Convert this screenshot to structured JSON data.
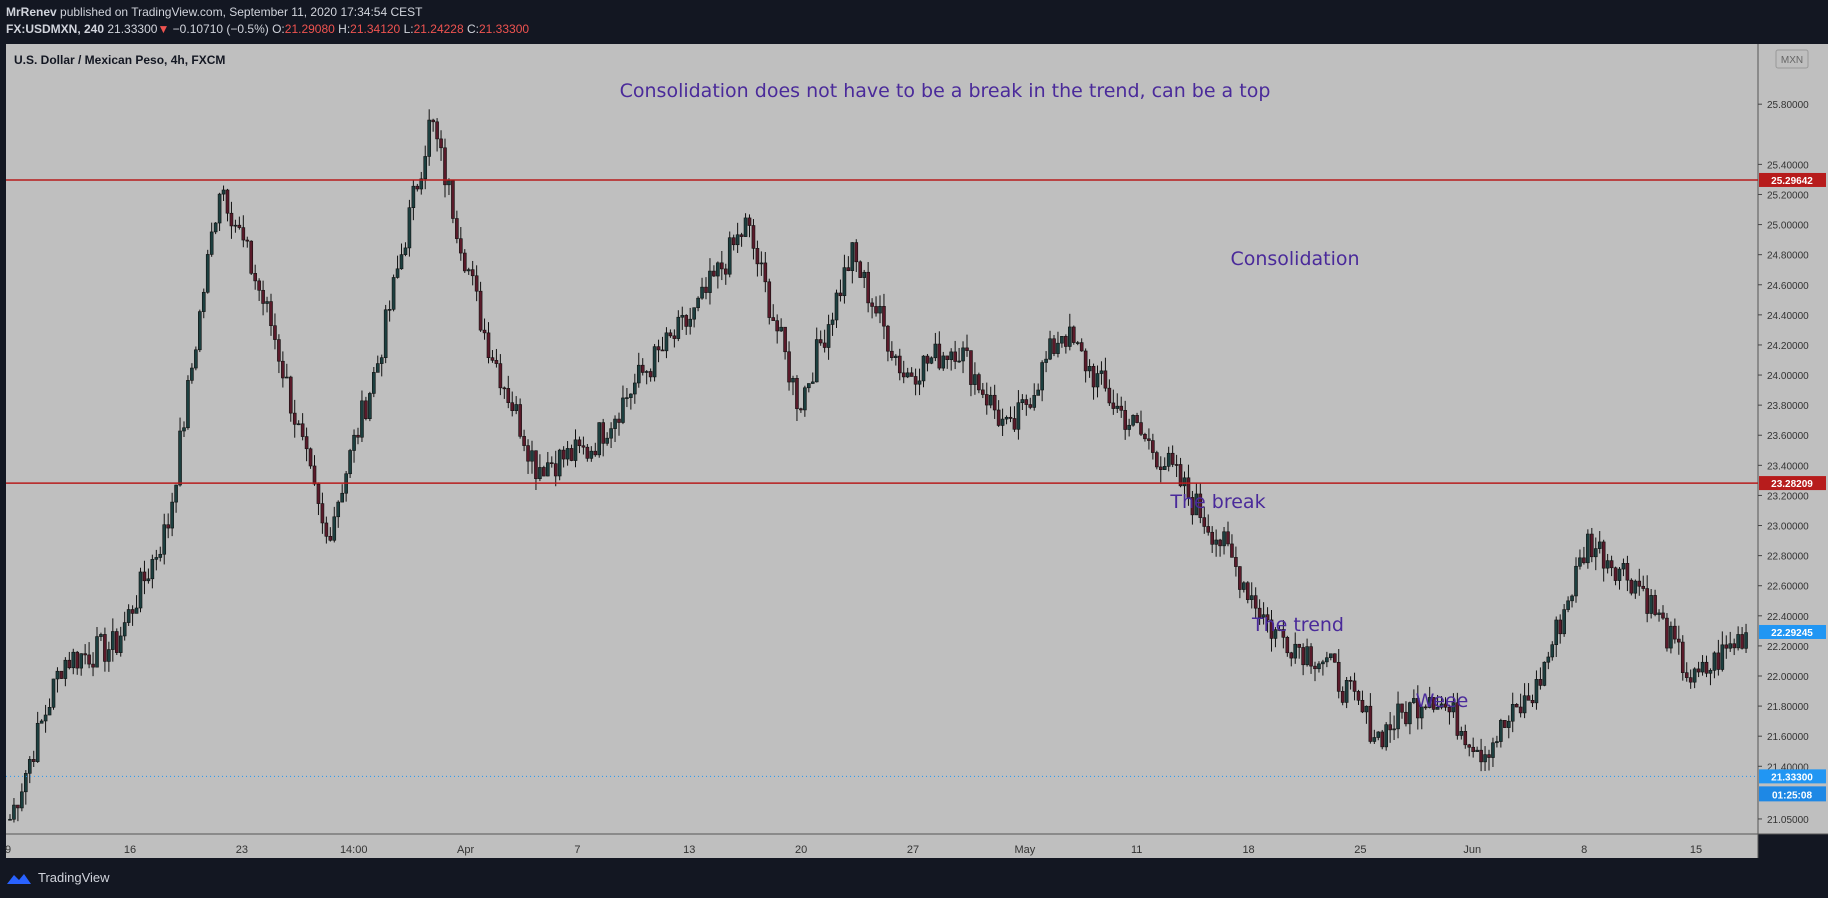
{
  "header": {
    "author": "MrRenev",
    "published_text": "published on TradingView.com, September 11, 2020 17:34:54 CEST",
    "symbol": "FX:USDMXN, 240",
    "last": "21.33300",
    "change_arrow": "▼",
    "change": "−0.10710 (−0.5%)",
    "open_label": "O:",
    "open": "21.29080",
    "high_label": "H:",
    "high": "21.34120",
    "low_label": "L:",
    "low": "21.24228",
    "close_label": "C:",
    "close": "21.33300"
  },
  "footer": {
    "brand": "TradingView"
  },
  "colors": {
    "plot_bg": "#bfbfbf",
    "frame": "#131722",
    "up": "#1c3f3f",
    "down": "#5a1a2a",
    "hline": "#b71c1c",
    "annotation": "#4a2a9a",
    "blue_tag": "#2196f3",
    "red_tag": "#b71c1c"
  },
  "chart_data": {
    "type": "candlestick",
    "title": "U.S. Dollar / Mexican Peso, 4h, FXCM",
    "currency": "MXN",
    "ylim": [
      20.95,
      26.2
    ],
    "y_ticks": [
      "21.05000",
      "21.40000",
      "21.60000",
      "21.80000",
      "22.00000",
      "22.20000",
      "22.40000",
      "22.60000",
      "22.80000",
      "23.00000",
      "23.20000",
      "23.40000",
      "23.60000",
      "23.80000",
      "24.00000",
      "24.20000",
      "24.40000",
      "24.60000",
      "24.80000",
      "25.00000",
      "25.20000",
      "25.40000",
      "25.80000"
    ],
    "x_ticks": [
      "9",
      "16",
      "23",
      "14:00",
      "Apr",
      "7",
      "13",
      "20",
      "27",
      "May",
      "11",
      "18",
      "25",
      "Jun",
      "8",
      "15"
    ],
    "horizontal_lines": [
      {
        "value": 25.29642,
        "label": "25.29642"
      },
      {
        "value": 23.28209,
        "label": "23.28209"
      }
    ],
    "price_tags": [
      {
        "value": 22.29245,
        "label": "22.29245"
      },
      {
        "value": 21.333,
        "label": "21.33300"
      }
    ],
    "countdown": "01:25:08",
    "annotations": [
      "Consolidation does not have to be a break in the trend, can be a top",
      "Consolidation",
      "The break",
      "The trend",
      "Weee"
    ],
    "price_path": [
      {
        "x": "9",
        "y": 21.05
      },
      {
        "x": "14",
        "y": 22.1
      },
      {
        "x": "16",
        "y": 22.2
      },
      {
        "x": "19",
        "y": 23.0
      },
      {
        "x": "23",
        "y": 25.3
      },
      {
        "x": "26",
        "y": 24.3
      },
      {
        "x": "14:00",
        "y": 22.9
      },
      {
        "x": "Apr",
        "y": 24.1
      },
      {
        "x": "Apr 6",
        "y": 25.7
      },
      {
        "x": "9",
        "y": 24.3
      },
      {
        "x": "13",
        "y": 23.4
      },
      {
        "x": "16",
        "y": 23.5
      },
      {
        "x": "20",
        "y": 24.0
      },
      {
        "x": "24",
        "y": 24.4
      },
      {
        "x": "27",
        "y": 25.0
      },
      {
        "x": "30",
        "y": 23.8
      },
      {
        "x": "May",
        "y": 24.8
      },
      {
        "x": "May 5",
        "y": 24.0
      },
      {
        "x": "9",
        "y": 24.2
      },
      {
        "x": "11",
        "y": 23.6
      },
      {
        "x": "14",
        "y": 24.3
      },
      {
        "x": "18",
        "y": 23.8
      },
      {
        "x": "21",
        "y": 23.4
      },
      {
        "x": "23",
        "y": 22.9
      },
      {
        "x": "27",
        "y": 22.3
      },
      {
        "x": "Jun",
        "y": 22.1
      },
      {
        "x": "Jun 4",
        "y": 21.6
      },
      {
        "x": "6",
        "y": 21.9
      },
      {
        "x": "8",
        "y": 21.5
      },
      {
        "x": "11",
        "y": 21.9
      },
      {
        "x": "12",
        "y": 22.9
      },
      {
        "x": "15",
        "y": 22.6
      },
      {
        "x": "16",
        "y": 21.95
      },
      {
        "x": "17",
        "y": 22.3
      }
    ]
  }
}
